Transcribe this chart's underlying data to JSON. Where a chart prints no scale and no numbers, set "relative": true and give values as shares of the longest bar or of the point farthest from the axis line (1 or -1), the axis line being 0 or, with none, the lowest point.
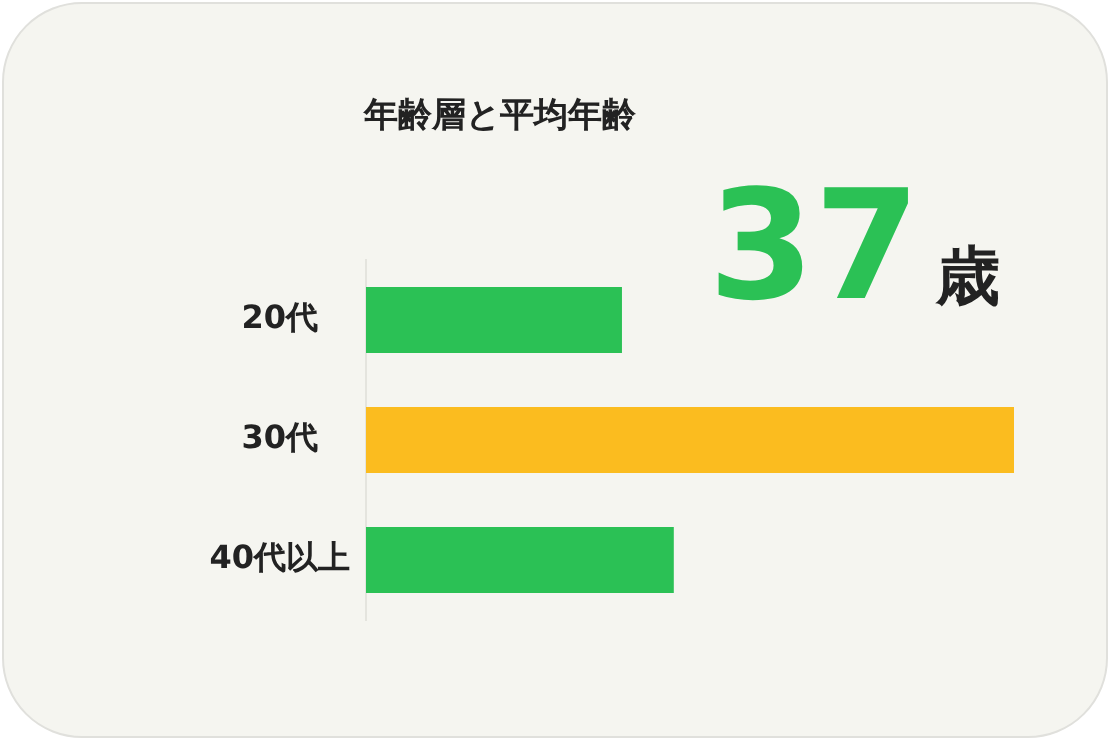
{
  "chart_data": {
    "type": "bar",
    "orientation": "horizontal",
    "relative": true,
    "title": "年齢層と平均年齢",
    "categories": [
      "20代",
      "30代",
      "40代以上"
    ],
    "values": [
      0.395,
      1,
      0.475
    ],
    "colors": [
      "#2bc155",
      "#fbbc1f",
      "#2bc155"
    ],
    "annotations": [
      "37歳"
    ],
    "legend": false
  }
}
